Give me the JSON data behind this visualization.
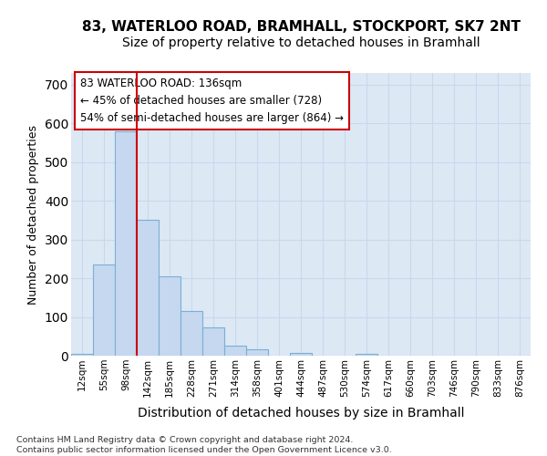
{
  "title_line1": "83, WATERLOO ROAD, BRAMHALL, STOCKPORT, SK7 2NT",
  "title_line2": "Size of property relative to detached houses in Bramhall",
  "xlabel": "Distribution of detached houses by size in Bramhall",
  "ylabel": "Number of detached properties",
  "footnote": "Contains HM Land Registry data © Crown copyright and database right 2024.\nContains public sector information licensed under the Open Government Licence v3.0.",
  "bin_labels": [
    "12sqm",
    "55sqm",
    "98sqm",
    "142sqm",
    "185sqm",
    "228sqm",
    "271sqm",
    "314sqm",
    "358sqm",
    "401sqm",
    "444sqm",
    "487sqm",
    "530sqm",
    "574sqm",
    "617sqm",
    "660sqm",
    "703sqm",
    "746sqm",
    "790sqm",
    "833sqm",
    "876sqm"
  ],
  "bar_values": [
    5,
    235,
    580,
    350,
    205,
    115,
    72,
    27,
    17,
    0,
    8,
    0,
    0,
    5,
    0,
    0,
    0,
    0,
    0,
    0,
    0
  ],
  "bar_color": "#c5d8f0",
  "bar_edge_color": "#7bafd4",
  "vline_color": "#cc0000",
  "vline_x_index": 3,
  "annotation_title": "83 WATERLOO ROAD: 136sqm",
  "annotation_line1": "← 45% of detached houses are smaller (728)",
  "annotation_line2": "54% of semi-detached houses are larger (864) →",
  "annotation_box_bg": "#ffffff",
  "annotation_box_edge": "#cc0000",
  "ylim": [
    0,
    730
  ],
  "yticks": [
    0,
    100,
    200,
    300,
    400,
    500,
    600,
    700
  ],
  "grid_color": "#c8d8ec",
  "bg_color": "#dde8f5",
  "title_fontsize": 11,
  "subtitle_fontsize": 10,
  "footnote_fontsize": 6.8,
  "ylabel_fontsize": 9,
  "xlabel_fontsize": 10
}
